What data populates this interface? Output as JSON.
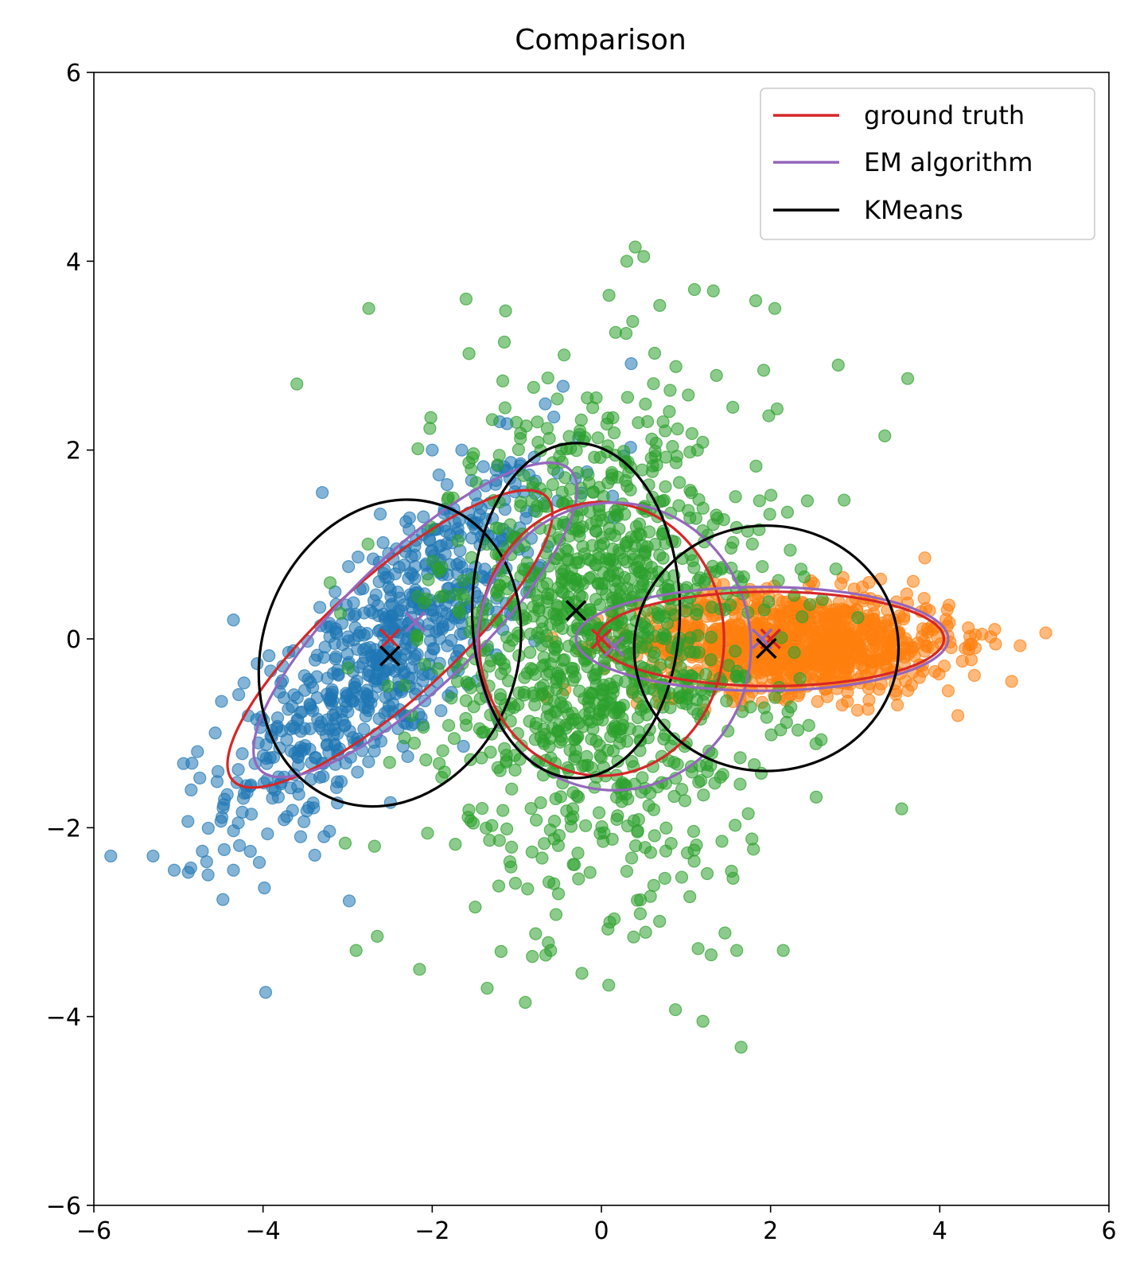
{
  "chart_data": {
    "type": "scatter",
    "title": "Comparison",
    "xlabel": "",
    "ylabel": "",
    "xlim": [
      -6,
      6
    ],
    "ylim": [
      -6,
      6
    ],
    "xticks": [
      {
        "value": -6,
        "label": "−6"
      },
      {
        "value": -4,
        "label": "−4"
      },
      {
        "value": -2,
        "label": "−2"
      },
      {
        "value": 0,
        "label": "0"
      },
      {
        "value": 2,
        "label": "2"
      },
      {
        "value": 4,
        "label": "4"
      },
      {
        "value": 6,
        "label": "6"
      }
    ],
    "yticks": [
      {
        "value": -6,
        "label": "−6"
      },
      {
        "value": -4,
        "label": "−4"
      },
      {
        "value": -2,
        "label": "−2"
      },
      {
        "value": 0,
        "label": "0"
      },
      {
        "value": 2,
        "label": "2"
      },
      {
        "value": 4,
        "label": "4"
      },
      {
        "value": 6,
        "label": "6"
      }
    ],
    "grid": false,
    "legend_position": "top-right",
    "legend": [
      {
        "label": "ground truth",
        "color": "#d62728"
      },
      {
        "label": "EM algorithm",
        "color": "#9467bd"
      },
      {
        "label": "KMeans",
        "color": "#000000"
      }
    ],
    "clusters": [
      {
        "color": "#1f77b4",
        "mean": [
          -2.5,
          -0.1
        ],
        "cov": [
          [
            0.9,
            0.7
          ],
          [
            0.7,
            0.9
          ]
        ],
        "n": 700
      },
      {
        "color": "#2ca02c",
        "mean": [
          0.0,
          0.0
        ],
        "cov": [
          [
            1.0,
            0.0
          ],
          [
            0.0,
            1.6
          ]
        ],
        "n": 1200
      },
      {
        "color": "#ff7f0e",
        "mean": [
          2.3,
          -0.05
        ],
        "cov": [
          [
            0.85,
            0.0
          ],
          [
            0.0,
            0.07
          ]
        ],
        "n": 1000
      }
    ],
    "outlier_points": {
      "blue": [
        [
          -5.8,
          -2.3
        ],
        [
          -5.3,
          -2.3
        ],
        [
          -5.05,
          -2.45
        ],
        [
          -4.85,
          -1.6
        ],
        [
          -4.65,
          -2.5
        ],
        [
          -4.35,
          -2.45
        ],
        [
          -4.15,
          -2.25
        ],
        [
          -4.35,
          0.2
        ],
        [
          -3.3,
          1.55
        ],
        [
          -2.0,
          2.0
        ]
      ],
      "green": [
        [
          -3.6,
          2.7
        ],
        [
          -2.75,
          3.5
        ],
        [
          -1.6,
          3.6
        ],
        [
          0.3,
          4.0
        ],
        [
          0.4,
          4.15
        ],
        [
          0.5,
          4.05
        ],
        [
          1.1,
          3.7
        ],
        [
          2.05,
          3.5
        ],
        [
          -2.9,
          -3.3
        ],
        [
          -2.65,
          -3.15
        ],
        [
          -2.15,
          -3.5
        ],
        [
          -1.35,
          -3.7
        ],
        [
          -0.9,
          -3.85
        ],
        [
          1.2,
          -4.05
        ],
        [
          2.15,
          -3.3
        ],
        [
          1.6,
          -3.3
        ],
        [
          -0.6,
          -3.3
        ],
        [
          0.1,
          -3.0
        ],
        [
          3.55,
          -1.8
        ],
        [
          2.8,
          2.9
        ],
        [
          3.35,
          2.15
        ]
      ],
      "orange": [
        [
          4.5,
          0.05
        ],
        [
          4.65,
          0.1
        ],
        [
          4.85,
          -0.45
        ],
        [
          4.1,
          -0.55
        ],
        [
          4.3,
          -0.1
        ],
        [
          3.5,
          -0.7
        ]
      ]
    },
    "ellipses": [
      {
        "method": "ground truth",
        "color": "#d62728",
        "cx": -2.5,
        "cy": 0.0,
        "a": 2.5,
        "b": 0.65,
        "angle_deg": 42
      },
      {
        "method": "EM algorithm",
        "color": "#9467bd",
        "cx": -2.2,
        "cy": 0.2,
        "a": 2.55,
        "b": 0.7,
        "angle_deg": 44
      },
      {
        "method": "KMeans",
        "color": "#000000",
        "cx": -2.5,
        "cy": -0.15,
        "a": 1.85,
        "b": 1.35,
        "angle_deg": 70
      },
      {
        "method": "ground truth",
        "color": "#d62728",
        "cx": 0.0,
        "cy": 0.0,
        "a": 1.45,
        "b": 1.45,
        "angle_deg": 0
      },
      {
        "method": "EM algorithm",
        "color": "#9467bd",
        "cx": 0.15,
        "cy": -0.08,
        "a": 1.7,
        "b": 1.45,
        "angle_deg": 90
      },
      {
        "method": "KMeans",
        "color": "#000000",
        "cx": -0.3,
        "cy": 0.3,
        "a": 1.98,
        "b": 1.1,
        "angle_deg": 90
      },
      {
        "method": "ground truth",
        "color": "#d62728",
        "cx": 2.0,
        "cy": 0.0,
        "a": 2.05,
        "b": 0.5,
        "angle_deg": 0
      },
      {
        "method": "EM algorithm",
        "color": "#9467bd",
        "cx": 1.9,
        "cy": 0.0,
        "a": 2.2,
        "b": 0.55,
        "angle_deg": 0
      },
      {
        "method": "KMeans",
        "color": "#000000",
        "cx": 1.95,
        "cy": -0.1,
        "a": 1.45,
        "b": 1.4,
        "angle_deg": 90
      }
    ],
    "centers": [
      {
        "method": "ground truth",
        "color": "#d62728",
        "x": -2.5,
        "y": 0.0
      },
      {
        "method": "EM algorithm",
        "color": "#9467bd",
        "x": -2.2,
        "y": 0.18
      },
      {
        "method": "KMeans",
        "color": "#000000",
        "x": -2.5,
        "y": -0.18
      },
      {
        "method": "ground truth",
        "color": "#d62728",
        "x": 0.0,
        "y": 0.0
      },
      {
        "method": "EM algorithm",
        "color": "#9467bd",
        "x": 0.15,
        "y": -0.08
      },
      {
        "method": "KMeans",
        "color": "#000000",
        "x": -0.3,
        "y": 0.3
      },
      {
        "method": "ground truth",
        "color": "#d62728",
        "x": 2.0,
        "y": 0.0
      },
      {
        "method": "EM algorithm",
        "color": "#9467bd",
        "x": 1.9,
        "y": 0.0
      },
      {
        "method": "KMeans",
        "color": "#000000",
        "x": 1.95,
        "y": -0.1
      }
    ]
  }
}
